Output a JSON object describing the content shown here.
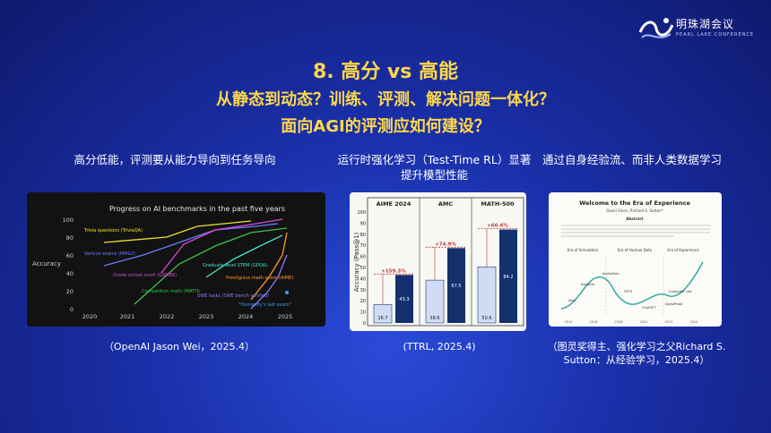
{
  "logo": {
    "name": "明珠湖会议",
    "sub": "PEARL LAKE CONFERENCE"
  },
  "title": {
    "line1": "8. 高分 vs 高能",
    "line2": "从静态到动态？训练、评测、解决问题一体化？",
    "line3": "面向AGI的评测应如何建设？"
  },
  "col1": {
    "caption": "高分低能，评测要从能力导向到任务导向",
    "source": "（OpenAI Jason Wei，2025.4）"
  },
  "col2": {
    "caption": "运行时强化学习（Test-Time RL）显著提升模型性能",
    "source": "(TTRL, 2025.4)"
  },
  "col3": {
    "caption": "通过自身经验流、而非人类数据学习",
    "source": "（图灵奖得主、强化学习之父Richard S. Sutton：从经验学习，2025.4）"
  },
  "fig1": {
    "title": "Progress on AI benchmarks in the past five years",
    "ylabel": "Accuracy",
    "yticks": [
      "100",
      "80",
      "60",
      "40",
      "20",
      "0"
    ],
    "xticks": [
      "2020",
      "2021",
      "2022",
      "2023",
      "2024",
      "2025"
    ],
    "labels": {
      "trivia": "Trivia questions (TriviaQA)",
      "mmlu": "Various exams (MMLU)",
      "gsm8k": "Grade-school math (GSM8K)",
      "math": "Competition math (MATH)",
      "gpqa": "Graduate-level STEM (GPQA)",
      "aime": "Prestigious math exam (AIME)",
      "swe": "SWE tasks (SWE bench verified)",
      "hle": "\"Humanity's last exam\""
    },
    "colors": {
      "trivia": "#f2e12e",
      "mmlu": "#6b7cff",
      "gsm8k": "#d84bd8",
      "math": "#3fbf4f",
      "gpqa": "#46e2c8",
      "aime": "#ff9a2e",
      "swe": "#8a7cff",
      "hle": "#3aa0ff"
    }
  },
  "chart_data": {
    "type": "bar",
    "ylabel": "Accuracy (Pass@1)",
    "ylim": [
      0,
      100
    ],
    "yticks": [
      "0",
      "10",
      "20",
      "30",
      "40",
      "50",
      "60",
      "70",
      "80",
      "90",
      "100"
    ],
    "groups": [
      {
        "name": "AIME 2024",
        "before": 16.7,
        "after": 43.3,
        "gain": "+159.3%"
      },
      {
        "name": "AMC",
        "before": 38.6,
        "after": 67.5,
        "gain": "+74.9%"
      },
      {
        "name": "MATH-500",
        "before": 50.6,
        "after": 84.2,
        "gain": "+66.4%"
      }
    ]
  },
  "fig3": {
    "heading": "Welcome to the Era of Experience",
    "authors": "David Silver, Richard S. Sutton*",
    "abstract_title": "Abstract",
    "eras": [
      "Era of Simulation",
      "Era of Human Data",
      "Era of Experience"
    ],
    "points": [
      "AlphaGo",
      "AlphaZero",
      "GPT3",
      "ChatGPT",
      "AlphaProof",
      "Computer Use",
      "Atari"
    ],
    "years": [
      "2014",
      "2016",
      "2018",
      "2020",
      "2022",
      "2024"
    ]
  }
}
